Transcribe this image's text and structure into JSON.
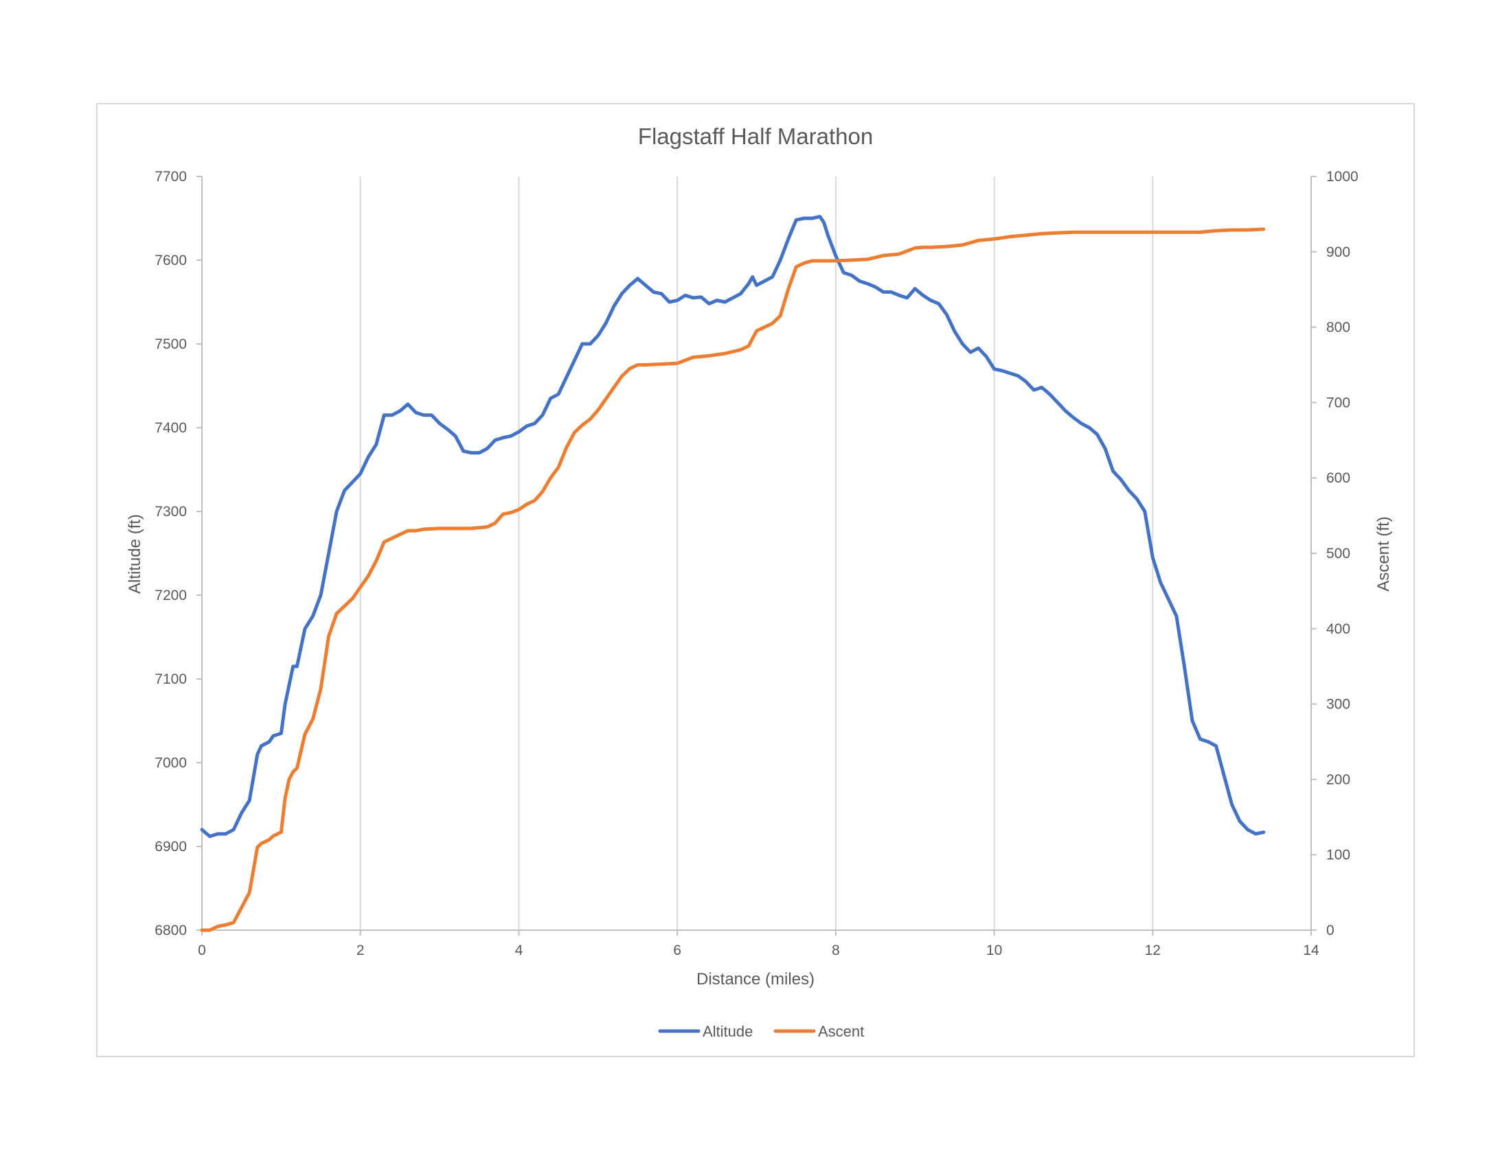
{
  "chart_data": {
    "type": "line",
    "title": "Flagstaff Half Marathon",
    "xlabel": "Distance (miles)",
    "ylabel": "Altitude (ft)",
    "y2label": "Ascent (ft)",
    "xlim": [
      0,
      14
    ],
    "ylim": [
      6800,
      7700
    ],
    "y2lim": [
      0,
      1000
    ],
    "x_ticks": [
      0,
      2,
      4,
      6,
      8,
      10,
      12,
      14
    ],
    "y_ticks": [
      6800,
      6900,
      7000,
      7100,
      7200,
      7300,
      7400,
      7500,
      7600,
      7700
    ],
    "y2_ticks": [
      0,
      100,
      200,
      300,
      400,
      500,
      600,
      700,
      800,
      900,
      1000
    ],
    "grid": "vertical",
    "legend_position": "bottom",
    "series": [
      {
        "name": "Altitude",
        "axis": "left",
        "color": "#4472C4",
        "x": [
          0,
          0.1,
          0.2,
          0.3,
          0.4,
          0.5,
          0.6,
          0.7,
          0.75,
          0.85,
          0.9,
          1.0,
          1.05,
          1.15,
          1.2,
          1.3,
          1.4,
          1.5,
          1.6,
          1.7,
          1.8,
          1.9,
          2.0,
          2.1,
          2.2,
          2.3,
          2.4,
          2.5,
          2.6,
          2.7,
          2.8,
          2.9,
          3.0,
          3.1,
          3.2,
          3.3,
          3.4,
          3.5,
          3.6,
          3.7,
          3.8,
          3.9,
          4.0,
          4.1,
          4.2,
          4.3,
          4.4,
          4.5,
          4.6,
          4.7,
          4.8,
          4.9,
          5.0,
          5.1,
          5.2,
          5.3,
          5.4,
          5.5,
          5.6,
          5.7,
          5.8,
          5.9,
          6.0,
          6.1,
          6.2,
          6.3,
          6.4,
          6.5,
          6.6,
          6.7,
          6.8,
          6.9,
          6.95,
          7.0,
          7.1,
          7.2,
          7.3,
          7.4,
          7.5,
          7.6,
          7.7,
          7.8,
          7.85,
          7.9,
          8.0,
          8.1,
          8.2,
          8.3,
          8.4,
          8.5,
          8.6,
          8.7,
          8.8,
          8.9,
          9.0,
          9.1,
          9.2,
          9.3,
          9.4,
          9.5,
          9.6,
          9.7,
          9.8,
          9.9,
          10.0,
          10.1,
          10.2,
          10.3,
          10.4,
          10.5,
          10.6,
          10.7,
          10.8,
          10.9,
          11.0,
          11.1,
          11.2,
          11.3,
          11.4,
          11.5,
          11.6,
          11.7,
          11.8,
          11.9,
          12.0,
          12.1,
          12.2,
          12.3,
          12.4,
          12.5,
          12.6,
          12.7,
          12.8,
          12.9,
          13.0,
          13.1,
          13.2,
          13.3,
          13.4
        ],
        "values": [
          6920,
          6912,
          6915,
          6915,
          6920,
          6940,
          6955,
          7010,
          7020,
          7025,
          7032,
          7035,
          7070,
          7115,
          7115,
          7160,
          7175,
          7200,
          7250,
          7300,
          7325,
          7335,
          7345,
          7365,
          7380,
          7415,
          7415,
          7420,
          7428,
          7418,
          7415,
          7415,
          7405,
          7398,
          7390,
          7372,
          7370,
          7370,
          7375,
          7385,
          7388,
          7390,
          7395,
          7402,
          7405,
          7415,
          7435,
          7440,
          7460,
          7480,
          7500,
          7500,
          7510,
          7525,
          7545,
          7560,
          7570,
          7578,
          7570,
          7562,
          7560,
          7550,
          7552,
          7558,
          7555,
          7556,
          7548,
          7552,
          7550,
          7555,
          7560,
          7572,
          7580,
          7570,
          7575,
          7580,
          7600,
          7625,
          7648,
          7650,
          7650,
          7652,
          7645,
          7630,
          7605,
          7585,
          7582,
          7575,
          7572,
          7568,
          7562,
          7562,
          7558,
          7555,
          7566,
          7558,
          7552,
          7548,
          7535,
          7515,
          7500,
          7490,
          7495,
          7485,
          7470,
          7468,
          7465,
          7462,
          7455,
          7445,
          7448,
          7440,
          7430,
          7420,
          7412,
          7405,
          7400,
          7392,
          7375,
          7348,
          7338,
          7325,
          7315,
          7300,
          7245,
          7215,
          7195,
          7175,
          7115,
          7050,
          7028,
          7025,
          7020,
          6985,
          6950,
          6930,
          6920,
          6915,
          6917
        ]
      },
      {
        "name": "Ascent",
        "axis": "right",
        "color": "#ED7D31",
        "x": [
          0,
          0.1,
          0.2,
          0.3,
          0.4,
          0.5,
          0.6,
          0.65,
          0.7,
          0.75,
          0.85,
          0.9,
          1.0,
          1.05,
          1.1,
          1.15,
          1.2,
          1.3,
          1.4,
          1.5,
          1.6,
          1.7,
          1.8,
          1.9,
          2.0,
          2.1,
          2.2,
          2.3,
          2.4,
          2.5,
          2.6,
          2.7,
          2.8,
          3.0,
          3.2,
          3.4,
          3.6,
          3.7,
          3.8,
          3.9,
          4.0,
          4.1,
          4.2,
          4.3,
          4.4,
          4.5,
          4.6,
          4.7,
          4.8,
          4.9,
          5.0,
          5.1,
          5.2,
          5.3,
          5.4,
          5.5,
          5.6,
          5.8,
          6.0,
          6.2,
          6.4,
          6.6,
          6.8,
          6.9,
          7.0,
          7.1,
          7.2,
          7.3,
          7.4,
          7.5,
          7.6,
          7.7,
          7.8,
          7.9,
          8.0,
          8.2,
          8.4,
          8.6,
          8.8,
          9.0,
          9.1,
          9.2,
          9.4,
          9.6,
          9.8,
          10.0,
          10.2,
          10.4,
          10.6,
          10.8,
          11.0,
          11.2,
          11.4,
          11.6,
          11.8,
          12.0,
          12.2,
          12.4,
          12.6,
          12.8,
          13.0,
          13.2,
          13.4
        ],
        "values": [
          0,
          0,
          5,
          7,
          10,
          30,
          50,
          80,
          110,
          115,
          120,
          125,
          130,
          175,
          200,
          210,
          215,
          260,
          280,
          320,
          390,
          420,
          430,
          440,
          455,
          470,
          490,
          515,
          520,
          525,
          530,
          530,
          532,
          533,
          533,
          533,
          535,
          540,
          552,
          554,
          558,
          565,
          570,
          582,
          600,
          614,
          640,
          660,
          670,
          678,
          690,
          705,
          720,
          735,
          745,
          750,
          750,
          751,
          752,
          760,
          762,
          765,
          770,
          775,
          795,
          800,
          805,
          815,
          850,
          880,
          885,
          888,
          888,
          888,
          888,
          889,
          890,
          895,
          897,
          905,
          906,
          906,
          907,
          909,
          915,
          917,
          920,
          922,
          924,
          925,
          926,
          926,
          926,
          926,
          926,
          926,
          926,
          926,
          926,
          928,
          929,
          929,
          930
        ]
      }
    ]
  }
}
